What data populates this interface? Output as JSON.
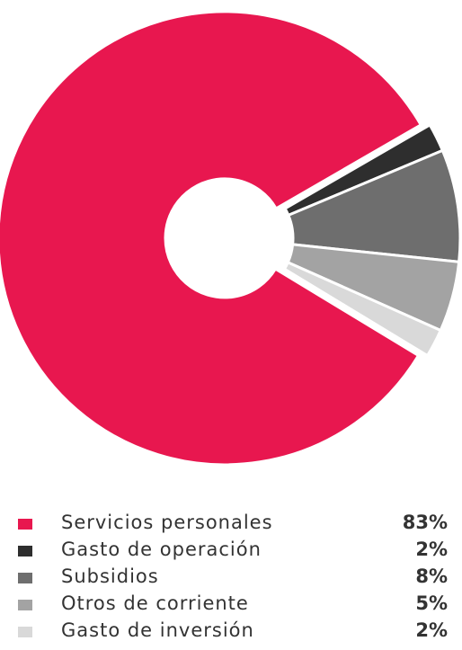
{
  "chart_data": {
    "type": "pie",
    "donut": true,
    "categories": [
      "Servicios personales",
      "Gasto de operación",
      "Subsidios",
      "Otros de corriente",
      "Gasto de inversión"
    ],
    "values": [
      83,
      2,
      8,
      5,
      2
    ],
    "value_labels": [
      "83%",
      "2%",
      "8%",
      "5%",
      "2%"
    ],
    "colors": [
      "#e8174f",
      "#2e2e2e",
      "#6e6e6e",
      "#a3a3a3",
      "#d9d9d9"
    ],
    "legend_position": "bottom"
  }
}
